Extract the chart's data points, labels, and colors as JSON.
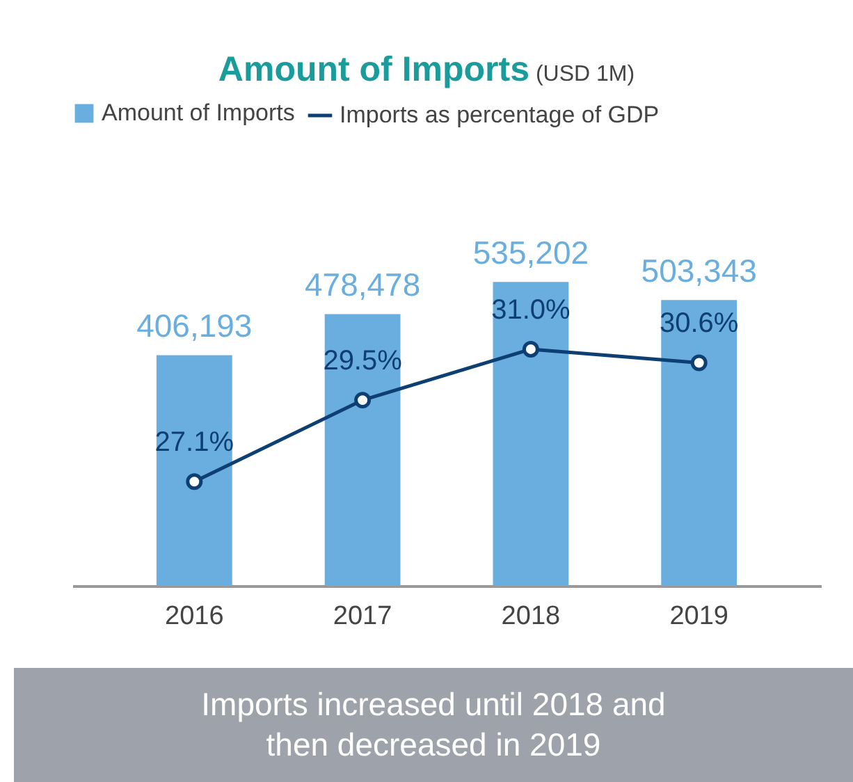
{
  "chart_data": {
    "type": "bar",
    "title": "Amount of Imports",
    "subtitle": "(USD 1M)",
    "categories": [
      "2016",
      "2017",
      "2018",
      "2019"
    ],
    "series": [
      {
        "name": "Amount of Imports",
        "color": "#6aaee0",
        "values": [
          406193,
          478478,
          535202,
          503343
        ],
        "value_labels": [
          "406,193",
          "478,478",
          "535,202",
          "503,343"
        ]
      },
      {
        "name": "Imports as percentage of GDP",
        "type": "line",
        "axis": "y2",
        "color": "#0d3f73",
        "values": [
          27.1,
          29.5,
          31.0,
          30.6
        ],
        "value_labels": [
          "27.1%",
          "29.5%",
          "31.0%",
          "30.6%"
        ]
      }
    ],
    "legend": "top",
    "marker": "circle",
    "annotations": [
      "Imports increased until 2018 and then decreased in 2019"
    ]
  }
}
